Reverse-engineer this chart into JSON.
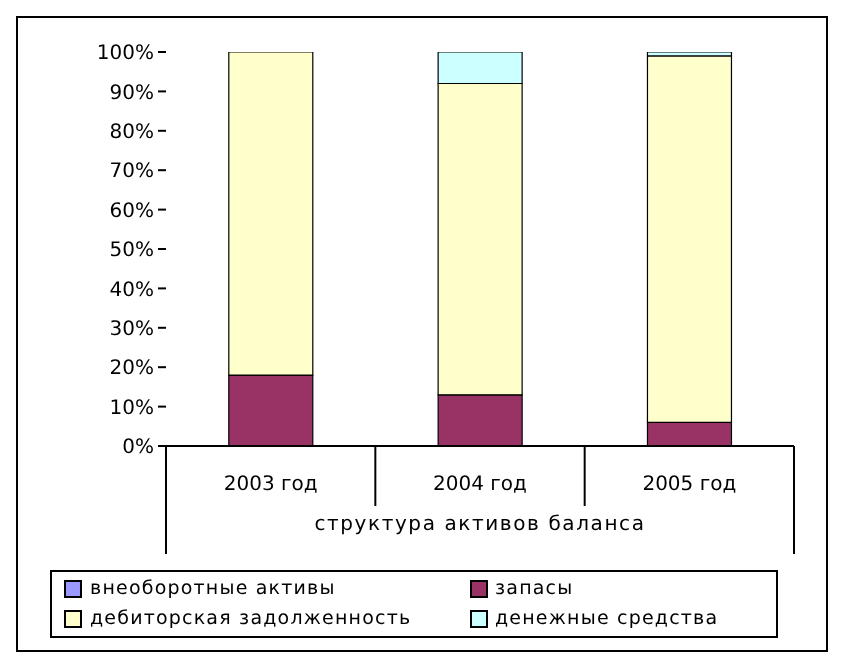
{
  "chart_data": {
    "type": "bar",
    "stacked": true,
    "xlabel": "структура активов баланса",
    "categories": [
      "2003 год",
      "2004 год",
      "2005 год"
    ],
    "series": [
      {
        "name": "внеоборотные активы",
        "color": "#9999ff",
        "values": [
          0,
          0,
          0
        ]
      },
      {
        "name": "запасы",
        "color": "#993366",
        "values": [
          18,
          13,
          6
        ]
      },
      {
        "name": "дебиторская задолженность",
        "color": "#ffffcc",
        "values": [
          82,
          79,
          93
        ]
      },
      {
        "name": "денежные средства",
        "color": "#ccffff",
        "values": [
          0,
          8,
          1
        ]
      }
    ],
    "ylim": [
      0,
      100
    ],
    "yticks": [
      {
        "value": 0,
        "label": "0%"
      },
      {
        "value": 10,
        "label": "10%"
      },
      {
        "value": 20,
        "label": "20%"
      },
      {
        "value": 30,
        "label": "30%"
      },
      {
        "value": 40,
        "label": "40%"
      },
      {
        "value": 50,
        "label": "50%"
      },
      {
        "value": 60,
        "label": "60%"
      },
      {
        "value": 70,
        "label": "70%"
      },
      {
        "value": 80,
        "label": "80%"
      },
      {
        "value": 90,
        "label": "90%"
      },
      {
        "value": 100,
        "label": "100%"
      }
    ],
    "grid": false,
    "legend": "bottom"
  }
}
